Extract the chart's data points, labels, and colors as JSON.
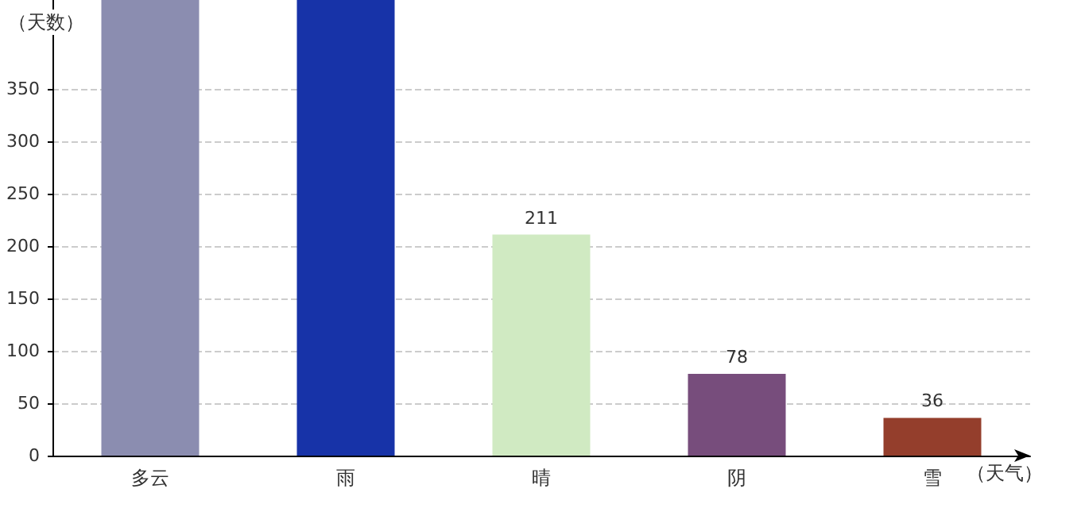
{
  "chart_data": {
    "type": "bar",
    "xlabel": "（天气）",
    "ylabel": "（天数）",
    "categories": [
      "多云",
      "雨",
      "晴",
      "阴",
      "雪"
    ],
    "values": [
      435,
      435,
      211,
      78,
      36
    ],
    "value_labels": [
      null,
      null,
      "211",
      "78",
      "36"
    ],
    "colors": [
      "#8b8db0",
      "#1733a8",
      "#d0eac2",
      "#774d7c",
      "#943e2c"
    ],
    "ylim": [
      0,
      435
    ],
    "yticks": [
      0,
      50,
      100,
      150,
      200,
      250,
      300,
      350
    ],
    "grid": "y"
  }
}
